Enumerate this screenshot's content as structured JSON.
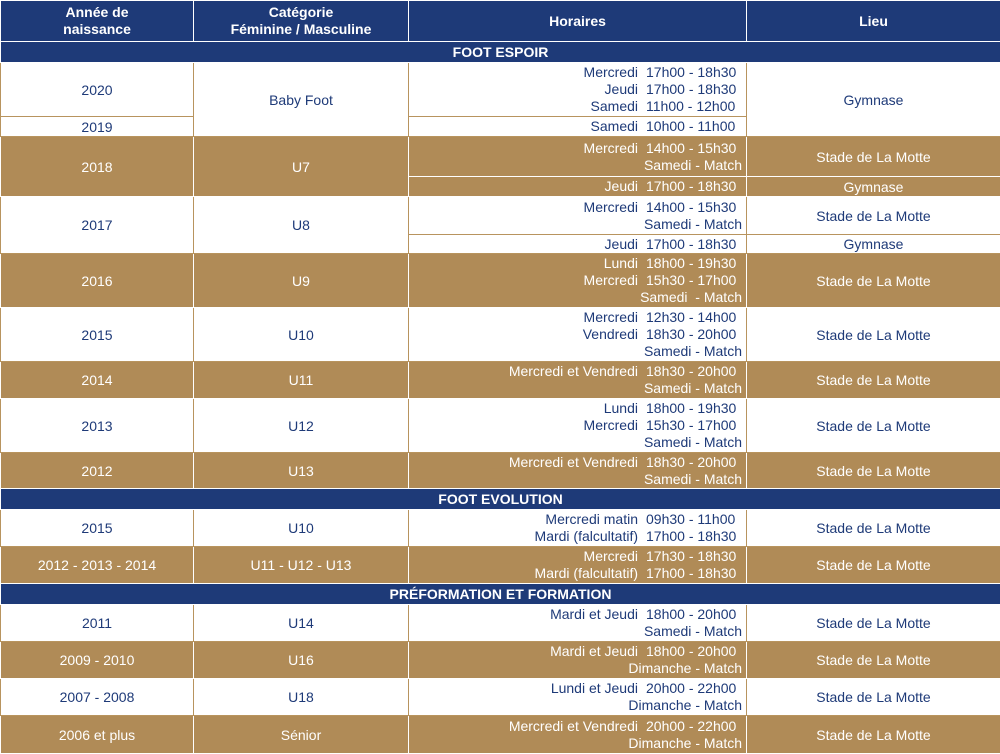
{
  "header": {
    "annee": "Année de\nnaissance",
    "categorie": "Catégorie\nFéminine / Masculine",
    "horaires": "Horaires",
    "lieu": "Lieu"
  },
  "sections": {
    "espoir": "FOOT ESPOIR",
    "evolution": "FOOT EVOLUTION",
    "formation": "PRÉFORMATION ET FORMATION"
  },
  "r2020": {
    "year": "2020",
    "cat": "Baby Foot",
    "lieu": "Gymnase",
    "h": [
      {
        "d": "Mercredi",
        "t": "17h00 - 18h30"
      },
      {
        "d": "Jeudi",
        "t": "17h00 - 18h30"
      },
      {
        "d": "Samedi",
        "t": "11h00 - 12h00"
      }
    ]
  },
  "r2019": {
    "year": "2019",
    "h": [
      {
        "d": "Samedi",
        "t": "10h00 - 11h00"
      }
    ]
  },
  "r2018": {
    "year": "2018",
    "cat": "U7",
    "a": {
      "h": [
        {
          "d": "Mercredi",
          "t": "14h00 - 15h30"
        }
      ],
      "x": "Samedi - Match",
      "lieu": "Stade de La Motte"
    },
    "b": {
      "h": [
        {
          "d": "Jeudi",
          "t": "17h00 - 18h30"
        }
      ],
      "lieu": "Gymnase"
    }
  },
  "r2017": {
    "year": "2017",
    "cat": "U8",
    "a": {
      "h": [
        {
          "d": "Mercredi",
          "t": "14h00 - 15h30"
        }
      ],
      "x": "Samedi - Match",
      "lieu": "Stade de La Motte"
    },
    "b": {
      "h": [
        {
          "d": "Jeudi",
          "t": "17h00 - 18h30"
        }
      ],
      "lieu": "Gymnase"
    }
  },
  "r2016": {
    "year": "2016",
    "cat": "U9",
    "lieu": "Stade de La Motte",
    "h": [
      {
        "d": "Lundi",
        "t": "18h00 - 19h30"
      },
      {
        "d": "Mercredi",
        "t": "15h30 - 17h00"
      }
    ],
    "x": "Samedi  - Match"
  },
  "r2015a": {
    "year": "2015",
    "cat": "U10",
    "lieu": "Stade de La Motte",
    "h": [
      {
        "d": "Mercredi",
        "t": "12h30 - 14h00"
      },
      {
        "d": "Vendredi",
        "t": "18h30 - 20h00"
      }
    ],
    "x": "Samedi - Match"
  },
  "r2014": {
    "year": "2014",
    "cat": "U11",
    "lieu": "Stade de La Motte",
    "h": [
      {
        "d": "Mercredi et Vendredi",
        "t": "18h30 - 20h00"
      }
    ],
    "x": "Samedi - Match"
  },
  "r2013": {
    "year": "2013",
    "cat": "U12",
    "lieu": "Stade de La Motte",
    "h": [
      {
        "d": "Lundi",
        "t": "18h00 - 19h30"
      },
      {
        "d": "Mercredi",
        "t": "15h30 - 17h00"
      }
    ],
    "x": "Samedi - Match"
  },
  "r2012": {
    "year": "2012",
    "cat": "U13",
    "lieu": "Stade de La Motte",
    "h": [
      {
        "d": "Mercredi et Vendredi",
        "t": "18h30 - 20h00"
      }
    ],
    "x": "Samedi - Match"
  },
  "e2015": {
    "year": "2015",
    "cat": "U10",
    "lieu": "Stade de La Motte",
    "h": [
      {
        "d": "Mercredi matin",
        "t": "09h30 - 11h00"
      },
      {
        "d": "Mardi (falcultatif)",
        "t": "17h00 - 18h30"
      }
    ]
  },
  "e2012": {
    "year": "2012 - 2013 - 2014",
    "cat": "U11 - U12 - U13",
    "lieu": "Stade de La Motte",
    "h": [
      {
        "d": "Mercredi",
        "t": "17h30 - 18h30"
      },
      {
        "d": "Mardi (falcultatif)",
        "t": "17h00 - 18h30"
      }
    ]
  },
  "f2011": {
    "year": "2011",
    "cat": "U14",
    "lieu": "Stade de La Motte",
    "h": [
      {
        "d": "Mardi et Jeudi",
        "t": "18h00 - 20h00"
      }
    ],
    "x": "Samedi - Match"
  },
  "f2009": {
    "year": "2009 - 2010",
    "cat": "U16",
    "lieu": "Stade de La Motte",
    "h": [
      {
        "d": "Mardi et Jeudi",
        "t": "18h00 - 20h00"
      }
    ],
    "x": "Dimanche - Match"
  },
  "f2007": {
    "year": "2007 - 2008",
    "cat": "U18",
    "lieu": "Stade de La Motte",
    "h": [
      {
        "d": "Lundi et Jeudi",
        "t": "20h00 - 22h00"
      }
    ],
    "x": "Dimanche - Match"
  },
  "f2006": {
    "year": "2006 et plus",
    "cat": "Sénior",
    "lieu": "Stade de La Motte",
    "h": [
      {
        "d": "Mercredi et Vendredi",
        "t": "20h00 - 22h00"
      }
    ],
    "x": "Dimanche - Match"
  },
  "colors": {
    "navy": "#1e3a78",
    "gold": "#b08b57",
    "white": "#ffffff"
  }
}
